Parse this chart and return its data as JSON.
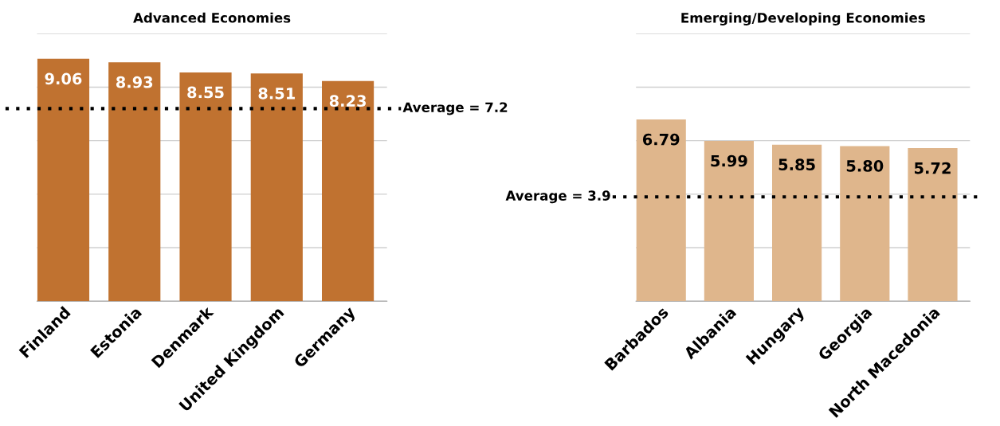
{
  "chart_data": [
    {
      "type": "bar",
      "title": "Advanced Economies",
      "categories": [
        "Finland",
        "Estonia",
        "Denmark",
        "United Kingdom",
        "Germany"
      ],
      "values": [
        9.06,
        8.93,
        8.55,
        8.51,
        8.23
      ],
      "value_labels": [
        "9.06",
        "8.93",
        "8.55",
        "8.51",
        "8.23"
      ],
      "color": "#c07230",
      "ylim": [
        0,
        10
      ],
      "yticks": [
        {
          "value": 0,
          "label": null
        },
        {
          "value": 2,
          "label": null
        },
        {
          "value": 4,
          "label": null
        },
        {
          "value": 6,
          "label": null
        },
        {
          "value": 8,
          "label": null
        },
        {
          "value": 10,
          "label": null
        }
      ],
      "grid": "y",
      "tick_labels": "x",
      "ref_lines": [
        {
          "axis": "y",
          "value": 7.2,
          "label": "Average = 7.2",
          "color": "#000000",
          "line_style": "dotted"
        }
      ]
    },
    {
      "type": "bar",
      "title": "Emerging/Developing Economies",
      "categories": [
        "Barbados",
        "Albania",
        "Hungary",
        "Georgia",
        "North Macedonia"
      ],
      "values": [
        6.79,
        5.99,
        5.85,
        5.8,
        5.72
      ],
      "value_labels": [
        "6.79",
        "5.99",
        "5.85",
        "5.80",
        "5.72"
      ],
      "color": "#dfb68c",
      "ylim": [
        0,
        10
      ],
      "yticks": [
        {
          "value": 0,
          "label": null
        },
        {
          "value": 2,
          "label": null
        },
        {
          "value": 4,
          "label": null
        },
        {
          "value": 6,
          "label": null
        },
        {
          "value": 8,
          "label": null
        },
        {
          "value": 10,
          "label": null
        }
      ],
      "grid": "y",
      "tick_labels": "x",
      "ref_lines": [
        {
          "axis": "y",
          "value": 3.9,
          "label": "Average = 3.9",
          "color": "#000000",
          "line_style": "dotted"
        }
      ]
    }
  ]
}
